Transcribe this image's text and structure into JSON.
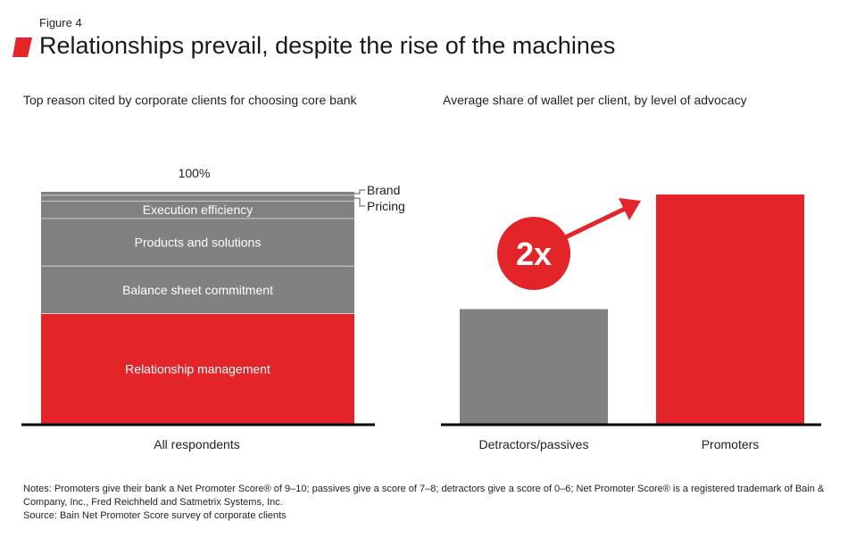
{
  "figure_label": "Figure 4",
  "title": "Relationships prevail, despite the rise of the machines",
  "colors": {
    "accent_red": "#e3252a",
    "gray": "#818181",
    "axis": "#000000",
    "segment_divider": "#cfcfcf"
  },
  "chart_data": [
    {
      "type": "bar",
      "stacked": true,
      "title": "Top reason cited by corporate clients for choosing core bank",
      "categories": [
        "All respondents"
      ],
      "total_label": "100%",
      "ylim": [
        0,
        100
      ],
      "series": [
        {
          "name": "Relationship management",
          "values": [
            47.5
          ],
          "color": "#e3252a",
          "label_position": "inside"
        },
        {
          "name": "Balance sheet commitment",
          "values": [
            20.5
          ],
          "color": "#818181",
          "label_position": "inside"
        },
        {
          "name": "Products and solutions",
          "values": [
            20.5
          ],
          "color": "#818181",
          "label_position": "inside"
        },
        {
          "name": "Execution efficiency",
          "values": [
            7.5
          ],
          "color": "#818181",
          "label_position": "inside"
        },
        {
          "name": "Pricing",
          "values": [
            2.5
          ],
          "color": "#818181",
          "label_position": "outside"
        },
        {
          "name": "Brand",
          "values": [
            1.5
          ],
          "color": "#818181",
          "label_position": "outside"
        }
      ]
    },
    {
      "type": "bar",
      "title": "Average share of wallet per client, by level of advocacy",
      "categories": [
        "Detractors/passives",
        "Promoters"
      ],
      "values": [
        1,
        2
      ],
      "ylim": [
        0,
        2
      ],
      "colors": [
        "#818181",
        "#e3252a"
      ],
      "annotation": "2x"
    }
  ],
  "notes": {
    "line1": "Notes: Promoters give their bank a Net Promoter Score® of 9–10; passives give a score of 7–8; detractors give a score of 0–6; Net Promoter Score® is a registered trademark of Bain & Company, Inc., Fred Reichheld and Satmetrix Systems, Inc.",
    "source": "Source: Bain Net Promoter Score survey of corporate clients"
  }
}
